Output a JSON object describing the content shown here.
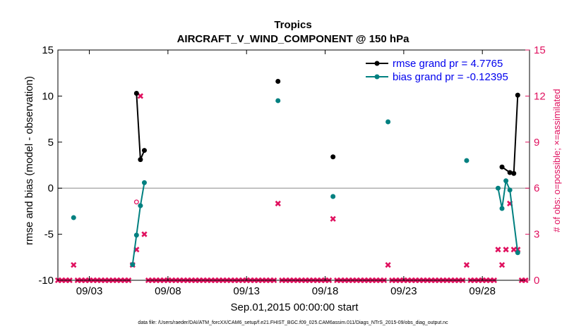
{
  "chart_data": {
    "type": "line",
    "title": "Tropics",
    "subtitle": "AIRCRAFT_V_WIND_COMPONENT @ 150 hPa",
    "xlabel": "Sep.01,2015 00:00:00 start",
    "ylabel": "rmse and bias (model - observation)",
    "y2label": "# of obs: o=possible; ×=assimilated",
    "footnote": "data file: /Users/raeder/DAI/ATM_forcXX/CAM6_setup/f.e21.FHIST_BGC.f09_025.CAM6assim.011/Diags_NTrS_2015-09/obs_diag_output.nc",
    "xlim": [
      "2015-09-01 00:00",
      "2015-10-01 00:00"
    ],
    "ylim": [
      -10,
      15
    ],
    "y2lim": [
      0,
      15
    ],
    "xticks": [
      {
        "value": "2015-09-03",
        "label": "09/03"
      },
      {
        "value": "2015-09-08",
        "label": "09/08"
      },
      {
        "value": "2015-09-13",
        "label": "09/13"
      },
      {
        "value": "2015-09-18",
        "label": "09/18"
      },
      {
        "value": "2015-09-23",
        "label": "09/23"
      },
      {
        "value": "2015-09-28",
        "label": "09/28"
      }
    ],
    "yticks": [
      "-10",
      "-5",
      "0",
      "5",
      "10",
      "15"
    ],
    "y2ticks": [
      "0",
      "3",
      "6",
      "9",
      "12",
      "15"
    ],
    "grid": false,
    "legend_position": "top-right",
    "colors": {
      "rmse": "#000000",
      "bias": "#008080",
      "obs": "#e0115f",
      "zero": "#b0b0b0"
    },
    "series": [
      {
        "name": "rmse grand pr = 4.7765",
        "axis": "left",
        "x": [
          "2015-09-06 00:00",
          "2015-09-06 06:00",
          "2015-09-06 12:00",
          "2015-09-15 00:00",
          "2015-09-18 12:00",
          "2015-09-29 06:00",
          "2015-09-29 18:00",
          "2015-09-30 00:00",
          "2015-09-30 06:00"
        ],
        "y": [
          10.3,
          3.1,
          4.1,
          11.6,
          3.4,
          2.3,
          1.7,
          1.6,
          10.1
        ],
        "connected": [
          [
            0,
            1,
            2
          ],
          [
            5,
            6,
            7,
            8
          ]
        ]
      },
      {
        "name": "bias grand pr = -0.12395",
        "axis": "left",
        "x": [
          "2015-09-02 00:00",
          "2015-09-05 18:00",
          "2015-09-06 00:00",
          "2015-09-06 06:00",
          "2015-09-06 12:00",
          "2015-09-15 00:00",
          "2015-09-18 12:00",
          "2015-09-22 00:00",
          "2015-09-27 00:00",
          "2015-09-29 00:00",
          "2015-09-29 06:00",
          "2015-09-29 12:00",
          "2015-09-29 18:00",
          "2015-09-30 06:00"
        ],
        "y": [
          -3.2,
          -8.3,
          -5.1,
          -1.9,
          0.6,
          9.5,
          -0.9,
          7.2,
          3.0,
          0.0,
          -2.2,
          0.8,
          -0.2,
          -7.0
        ],
        "connected": [
          [
            1,
            2,
            3,
            4
          ],
          [
            9,
            10,
            11,
            12,
            13
          ]
        ]
      },
      {
        "name": "assimilated",
        "axis": "right",
        "marker": "x",
        "x": [
          "2015-09-02 00:00",
          "2015-09-05 18:00",
          "2015-09-06 00:00",
          "2015-09-06 06:00",
          "2015-09-06 12:00",
          "2015-09-15 00:00",
          "2015-09-18 12:00",
          "2015-09-22 00:00",
          "2015-09-27 00:00",
          "2015-09-29 00:00",
          "2015-09-29 06:00",
          "2015-09-29 12:00",
          "2015-09-29 18:00",
          "2015-09-30 00:00",
          "2015-09-30 06:00"
        ],
        "y": [
          1,
          1,
          2,
          12,
          3,
          5,
          4,
          1,
          1,
          2,
          1,
          2,
          5,
          2,
          2
        ]
      },
      {
        "name": "possible",
        "axis": "right",
        "marker": "o",
        "x": [
          "2015-09-06 00:00"
        ],
        "y": [
          5.1
        ]
      }
    ]
  }
}
